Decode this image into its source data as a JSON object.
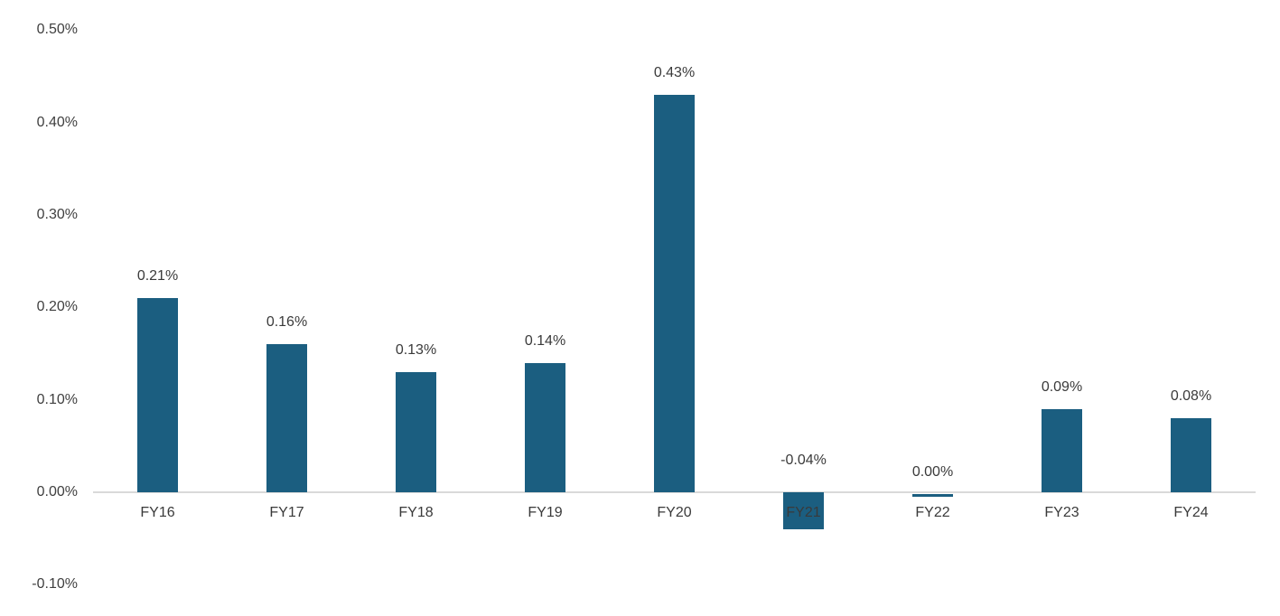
{
  "chart_data": {
    "type": "bar",
    "title": "",
    "xlabel": "",
    "ylabel": "",
    "categories": [
      "FY16",
      "FY17",
      "FY18",
      "FY19",
      "FY20",
      "FY21",
      "FY22",
      "FY23",
      "FY24"
    ],
    "values": [
      0.21,
      0.16,
      0.13,
      0.14,
      0.43,
      -0.04,
      0.0,
      0.09,
      0.08
    ],
    "data_labels": [
      "0.21%",
      "0.16%",
      "0.13%",
      "0.14%",
      "0.43%",
      "-0.04%",
      "0.00%",
      "0.09%",
      "0.08%"
    ],
    "yticks": [
      "0.50%",
      "0.40%",
      "0.30%",
      "0.20%",
      "0.10%",
      "0.00%",
      "-0.10%"
    ],
    "ylim": [
      -0.1,
      0.5
    ],
    "grid": "off",
    "legend": "none",
    "bar_color": "#1b5e80",
    "axis_line_color": "#d9d9d9",
    "text_color": "#3a3a3a"
  }
}
